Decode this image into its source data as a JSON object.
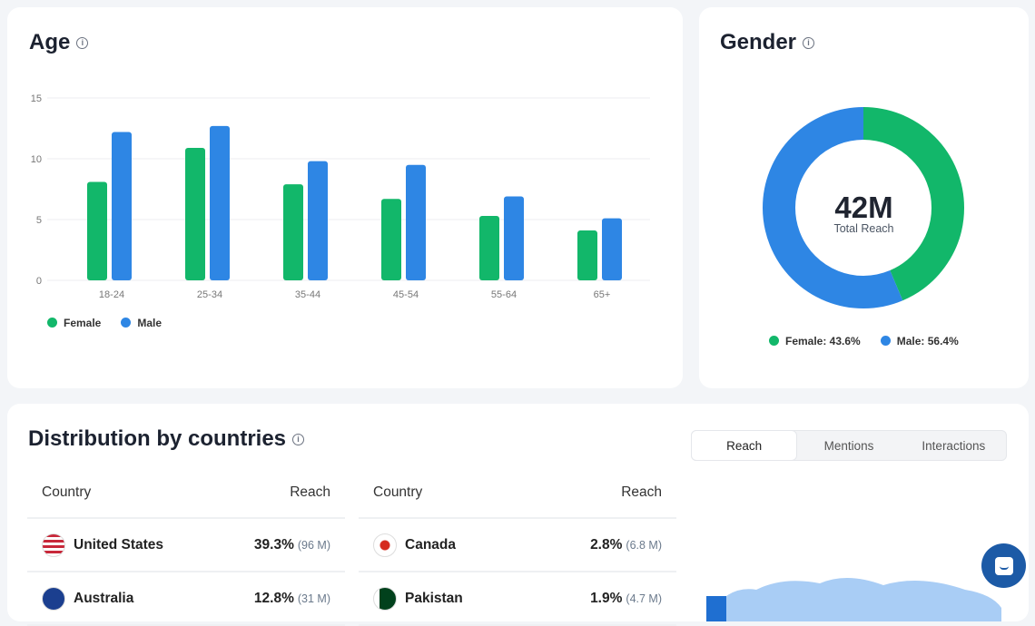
{
  "age": {
    "title": "Age",
    "legend": [
      "Female",
      "Male"
    ]
  },
  "gender": {
    "title": "Gender",
    "center_value": "42M",
    "center_label": "Total Reach",
    "legend": [
      "Female: 43.6%",
      "Male: 56.4%"
    ]
  },
  "countries": {
    "title": "Distribution by countries",
    "tabs": [
      "Reach",
      "Mentions",
      "Interactions"
    ],
    "active_tab": "Reach",
    "columns": {
      "country": "Country",
      "reach": "Reach"
    },
    "left": [
      {
        "name": "United States",
        "pct": "39.3%",
        "abs": "(96 M)",
        "flag": "us"
      },
      {
        "name": "Australia",
        "pct": "12.8%",
        "abs": "(31 M)",
        "flag": "au"
      }
    ],
    "right": [
      {
        "name": "Canada",
        "pct": "2.8%",
        "abs": "(6.8 M)",
        "flag": "ca"
      },
      {
        "name": "Pakistan",
        "pct": "1.9%",
        "abs": "(4.7 M)",
        "flag": "pk"
      }
    ]
  },
  "colors": {
    "female": "#12b76a",
    "male": "#2e86e4",
    "map_light": "#a9cdf5",
    "map_dark": "#1f6fd1",
    "chat": "#1c5aa6"
  },
  "chart_data": [
    {
      "type": "bar",
      "categories": [
        "18-24",
        "25-34",
        "35-44",
        "45-54",
        "55-64",
        "65+"
      ],
      "series": [
        {
          "name": "Female",
          "values": [
            8.1,
            10.9,
            7.9,
            6.7,
            5.3,
            4.1
          ]
        },
        {
          "name": "Male",
          "values": [
            12.2,
            12.7,
            9.8,
            9.5,
            6.9,
            5.1
          ]
        }
      ],
      "yticks": [
        "0",
        "5",
        "10",
        "15"
      ],
      "ylim": [
        0,
        15
      ],
      "grid": true,
      "legend": "bottom-left"
    },
    {
      "type": "pie",
      "donut": true,
      "labels": [
        "Female",
        "Male"
      ],
      "values": [
        43.6,
        56.4
      ]
    }
  ]
}
